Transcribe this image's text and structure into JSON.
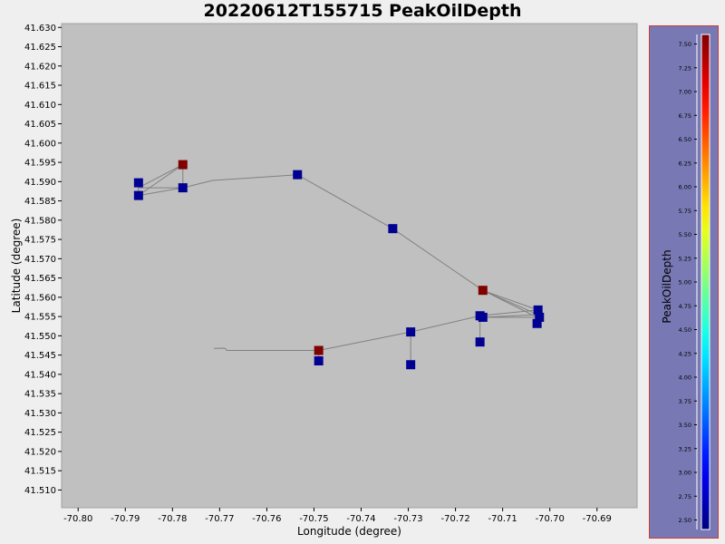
{
  "chart_data": {
    "type": "scatter",
    "title": "20220612T155715 PeakOilDepth",
    "xlabel": "Longitude (degree)",
    "ylabel": "Latitude (degree)",
    "xlim": [
      -70.8035,
      -70.6815
    ],
    "ylim": [
      41.5054,
      41.631
    ],
    "x_ticks": [
      "-70.80",
      "-70.79",
      "-70.78",
      "-70.77",
      "-70.76",
      "-70.75",
      "-70.74",
      "-70.73",
      "-70.72",
      "-70.71",
      "-70.70",
      "-70.69"
    ],
    "y_ticks": [
      "41.510",
      "41.515",
      "41.520",
      "41.525",
      "41.530",
      "41.535",
      "41.540",
      "41.545",
      "41.550",
      "41.555",
      "41.560",
      "41.565",
      "41.570",
      "41.575",
      "41.580",
      "41.585",
      "41.590",
      "41.595",
      "41.600",
      "41.605",
      "41.610",
      "41.615",
      "41.620",
      "41.625",
      "41.630"
    ],
    "track": [
      [
        -70.7712,
        41.5467
      ],
      [
        -70.7695,
        41.5468
      ],
      [
        -70.7688,
        41.5467
      ],
      [
        -70.7685,
        41.5462
      ],
      [
        -70.749,
        41.5462
      ],
      [
        -70.7295,
        41.551
      ],
      [
        -70.7148,
        41.5552
      ],
      [
        -70.7025,
        41.5567
      ],
      [
        -70.7143,
        41.5618
      ],
      [
        -70.7025,
        41.5555
      ],
      [
        -70.7142,
        41.5548
      ],
      [
        -70.7027,
        41.5548
      ],
      [
        -70.7142,
        41.5618
      ],
      [
        -70.7333,
        41.5778
      ],
      [
        -70.7535,
        41.5918
      ],
      [
        -70.7715,
        41.5903
      ],
      [
        -70.7778,
        41.5884
      ],
      [
        -70.7872,
        41.5884
      ],
      [
        -70.7778,
        41.5944
      ],
      [
        -70.7872,
        41.5864
      ],
      [
        -70.7778,
        41.5944
      ],
      [
        -70.7778,
        41.5884
      ],
      [
        -70.7872,
        41.5864
      ],
      [
        -70.7872,
        41.5897
      ]
    ],
    "stems": [
      [
        [
          -70.749,
          41.5462
        ],
        [
          -70.749,
          41.5435
        ]
      ],
      [
        [
          -70.7295,
          41.551
        ],
        [
          -70.7295,
          41.5425
        ]
      ],
      [
        [
          -70.7148,
          41.5552
        ],
        [
          -70.7148,
          41.5484
        ]
      ],
      [
        [
          -70.7025,
          41.5567
        ],
        [
          -70.7027,
          41.5532
        ]
      ]
    ],
    "points": [
      {
        "lon": -70.7872,
        "lat": 41.5897,
        "value": 2.5
      },
      {
        "lon": -70.7872,
        "lat": 41.5864,
        "value": 2.5
      },
      {
        "lon": -70.7778,
        "lat": 41.5944,
        "value": 7.6
      },
      {
        "lon": -70.7778,
        "lat": 41.5884,
        "value": 2.5
      },
      {
        "lon": -70.7535,
        "lat": 41.5918,
        "value": 2.5
      },
      {
        "lon": -70.7333,
        "lat": 41.5778,
        "value": 2.5
      },
      {
        "lon": -70.7142,
        "lat": 41.5618,
        "value": 7.6
      },
      {
        "lon": -70.7148,
        "lat": 41.5552,
        "value": 2.5
      },
      {
        "lon": -70.7142,
        "lat": 41.5548,
        "value": 2.5
      },
      {
        "lon": -70.7148,
        "lat": 41.5484,
        "value": 2.5
      },
      {
        "lon": -70.7025,
        "lat": 41.5567,
        "value": 2.5
      },
      {
        "lon": -70.7022,
        "lat": 41.5548,
        "value": 2.5
      },
      {
        "lon": -70.7027,
        "lat": 41.5532,
        "value": 2.5
      },
      {
        "lon": -70.7295,
        "lat": 41.551,
        "value": 2.5
      },
      {
        "lon": -70.7295,
        "lat": 41.5425,
        "value": 2.5
      },
      {
        "lon": -70.749,
        "lat": 41.5462,
        "value": 7.6
      },
      {
        "lon": -70.749,
        "lat": 41.5435,
        "value": 2.5
      }
    ],
    "colorbar": {
      "label": "PeakOilDepth",
      "range": [
        2.4,
        7.6
      ],
      "tick_values": [
        2.5,
        2.75,
        3.0,
        3.25,
        3.5,
        3.75,
        4.0,
        4.25,
        4.5,
        4.75,
        5.0,
        5.25,
        5.5,
        5.75,
        6.0,
        6.25,
        6.5,
        6.75,
        7.0,
        7.25,
        7.5
      ],
      "tick_labels": [
        "2.50",
        "2.75",
        "3.00",
        "3.25",
        "3.50",
        "3.75",
        "4.00",
        "4.25",
        "4.50",
        "4.75",
        "5.00",
        "5.25",
        "5.50",
        "5.75",
        "6.00",
        "6.25",
        "6.50",
        "6.75",
        "7.00",
        "7.25",
        "7.50"
      ],
      "colormap": "jet"
    },
    "grid": false,
    "colors": {
      "plot_background": "#c0c0c0",
      "page_background": "#efefef",
      "track_line": "#808080",
      "colorbar_panel": "#7878b4",
      "colorbar_border": "#c83c3c",
      "jet_low": "#00008f",
      "jet_high": "#800000"
    }
  }
}
